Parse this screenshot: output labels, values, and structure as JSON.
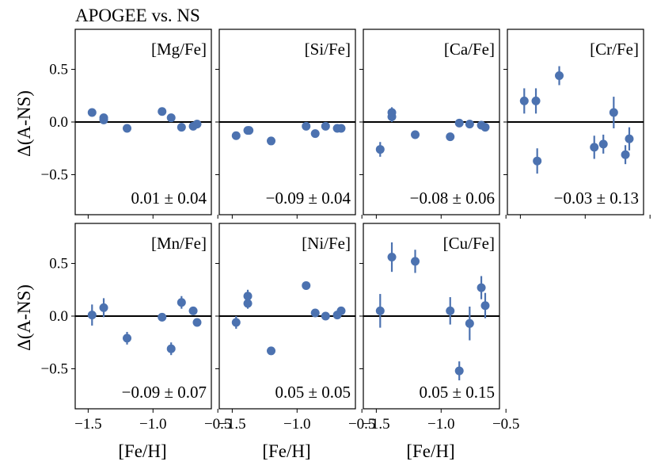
{
  "chart_data": {
    "type": "scatter",
    "title": "APOGEE vs. NS",
    "xlabel": "[Fe/H]",
    "ylabel": "Δ(A-NS)",
    "xlim": [
      -1.6,
      -0.55
    ],
    "ylim": [
      -0.88,
      0.88
    ],
    "xticks": [
      -1.5,
      -1.0,
      -0.5
    ],
    "xtick_labels": [
      "−1.5",
      "−1.0",
      "−0.5"
    ],
    "yticks": [
      0.5,
      0.0,
      -0.5
    ],
    "ytick_labels": [
      "0.5",
      "0.0",
      "−0.5"
    ],
    "reference_line": 0.0,
    "marker_color": "#4c72b0",
    "panels": [
      {
        "element": "[Mg/Fe]",
        "stat": "0.01 ± 0.04",
        "x": [
          -1.47,
          -1.38,
          -1.38,
          -1.2,
          -0.93,
          -0.86,
          -0.78,
          -0.69,
          -0.66
        ],
        "y": [
          0.09,
          0.02,
          0.04,
          -0.06,
          0.1,
          0.04,
          -0.05,
          -0.04,
          -0.02
        ],
        "err": [
          0.02,
          0.02,
          0.02,
          0.02,
          0.02,
          0.02,
          0.02,
          0.02,
          0.02
        ]
      },
      {
        "element": "[Si/Fe]",
        "stat": "−0.09 ± 0.04",
        "x": [
          -1.47,
          -1.38,
          -1.37,
          -1.2,
          -0.93,
          -0.86,
          -0.78,
          -0.69,
          -0.66
        ],
        "y": [
          -0.13,
          -0.08,
          -0.08,
          -0.18,
          -0.04,
          -0.11,
          -0.04,
          -0.06,
          -0.06
        ],
        "err": [
          0.02,
          0.02,
          0.02,
          0.02,
          0.02,
          0.02,
          0.02,
          0.02,
          0.02
        ]
      },
      {
        "element": "[Ca/Fe]",
        "stat": "−0.08 ± 0.06",
        "x": [
          -1.47,
          -1.38,
          -1.38,
          -1.2,
          -0.93,
          -0.86,
          -0.78,
          -0.69,
          -0.66
        ],
        "y": [
          -0.26,
          0.05,
          0.09,
          -0.12,
          -0.14,
          -0.01,
          -0.02,
          -0.03,
          -0.05
        ],
        "err": [
          0.07,
          0.05,
          0.05,
          0.04,
          0.02,
          0.02,
          0.02,
          0.02,
          0.02
        ]
      },
      {
        "element": "[Cr/Fe]",
        "stat": "−0.03 ± 0.13",
        "x": [
          -1.47,
          -1.38,
          -1.37,
          -1.2,
          -0.93,
          -0.86,
          -0.78,
          -0.69,
          -0.66
        ],
        "y": [
          0.2,
          0.2,
          -0.37,
          0.44,
          -0.24,
          -0.21,
          0.09,
          -0.31,
          -0.16
        ],
        "err": [
          0.12,
          0.12,
          0.12,
          0.09,
          0.11,
          0.09,
          0.15,
          0.09,
          0.11
        ]
      },
      {
        "element": "[Mn/Fe]",
        "stat": "−0.09 ± 0.07",
        "x": [
          -1.47,
          -1.38,
          -1.2,
          -0.93,
          -0.86,
          -0.78,
          -0.69,
          -0.66
        ],
        "y": [
          0.01,
          0.08,
          -0.21,
          -0.01,
          -0.31,
          0.13,
          0.05,
          -0.06
        ],
        "err": [
          0.1,
          0.09,
          0.06,
          0.04,
          0.06,
          0.06,
          0.02,
          0.02
        ]
      },
      {
        "element": "[Ni/Fe]",
        "stat": "0.05 ± 0.05",
        "x": [
          -1.47,
          -1.38,
          -1.38,
          -1.2,
          -0.93,
          -0.86,
          -0.78,
          -0.69,
          -0.66
        ],
        "y": [
          -0.06,
          0.12,
          0.19,
          -0.33,
          0.29,
          0.03,
          0.0,
          0.01,
          0.05
        ],
        "err": [
          0.06,
          0.05,
          0.06,
          0.02,
          0.02,
          0.02,
          0.02,
          0.02,
          0.02
        ]
      },
      {
        "element": "[Cu/Fe]",
        "stat": "0.05 ± 0.15",
        "x": [
          -1.47,
          -1.38,
          -1.2,
          -0.93,
          -0.86,
          -0.78,
          -0.69,
          -0.66
        ],
        "y": [
          0.05,
          0.56,
          0.52,
          0.05,
          -0.52,
          -0.07,
          0.27,
          0.1
        ],
        "err": [
          0.16,
          0.14,
          0.11,
          0.13,
          0.09,
          0.16,
          0.11,
          0.12
        ]
      }
    ]
  }
}
